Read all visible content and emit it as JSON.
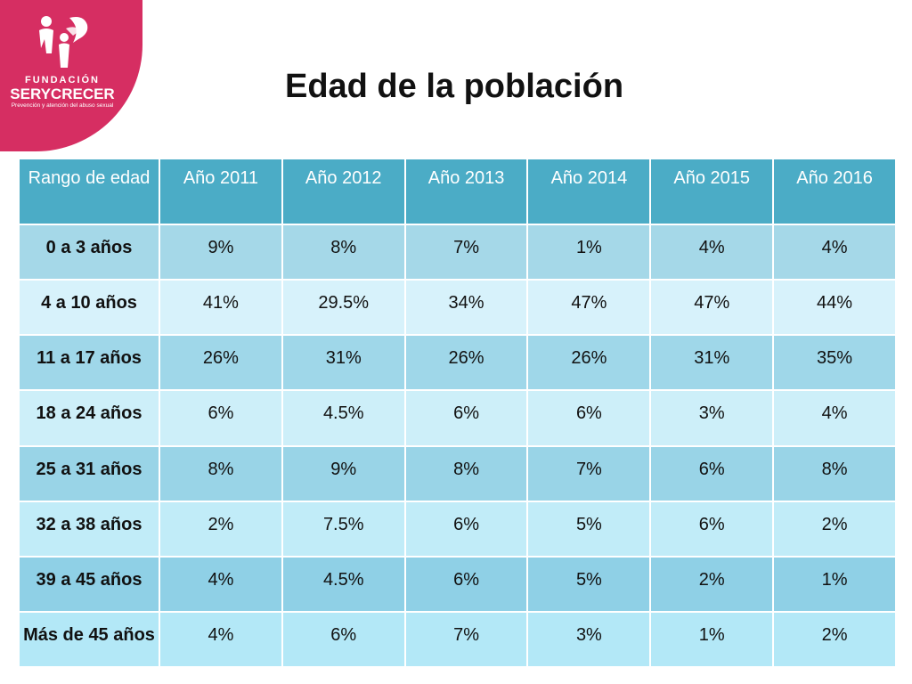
{
  "logo": {
    "line1": "FUNDACIÓN",
    "line2": "SERYCRECER",
    "tagline": "Prevención y atención del abuso sexual",
    "brand_color": "#d62e62"
  },
  "title": "Edad de la población",
  "table": {
    "headers": [
      "Rango de edad",
      "Año 2011",
      "Año 2012",
      "Año 2013",
      "Año 2014",
      "Año 2015",
      "Año 2016"
    ],
    "rows": [
      [
        "0 a 3 años",
        "9%",
        "8%",
        "7%",
        "1%",
        "4%",
        "4%"
      ],
      [
        "4 a 10 años",
        "41%",
        "29.5%",
        "34%",
        "47%",
        "47%",
        "44%"
      ],
      [
        "11 a 17 años",
        "26%",
        "31%",
        "26%",
        "26%",
        "31%",
        "35%"
      ],
      [
        "18 a 24 años",
        "6%",
        "4.5%",
        "6%",
        "6%",
        "3%",
        "4%"
      ],
      [
        "25 a 31 años",
        "8%",
        "9%",
        "8%",
        "7%",
        "6%",
        "8%"
      ],
      [
        "32 a 38 años",
        "2%",
        "7.5%",
        "6%",
        "5%",
        "6%",
        "2%"
      ],
      [
        "39 a 45 años",
        "4%",
        "4.5%",
        "6%",
        "5%",
        "2%",
        "1%"
      ],
      [
        "Más de 45 años",
        "4%",
        "6%",
        "7%",
        "3%",
        "1%",
        "2%"
      ]
    ],
    "header_color": "#4bacc6"
  }
}
